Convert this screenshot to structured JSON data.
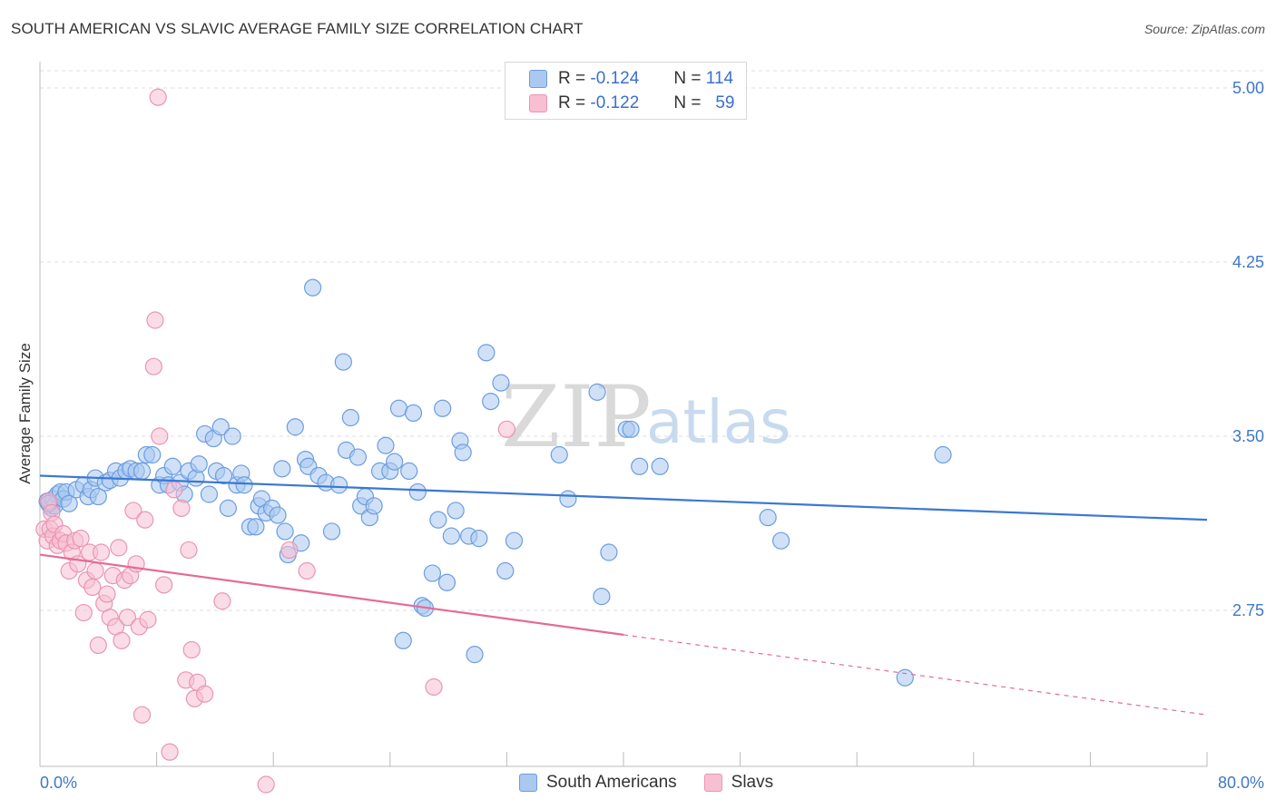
{
  "title": "SOUTH AMERICAN VS SLAVIC AVERAGE FAMILY SIZE CORRELATION CHART",
  "source": "Source: ZipAtlas.com",
  "watermark": {
    "zip": "ZIP",
    "atlas": "atlas"
  },
  "legend": {
    "r_label": "R =",
    "n_label": "N =",
    "rows": [
      {
        "name": "South Americans",
        "r": "-0.124",
        "n": "114",
        "fill": "#aac8f0",
        "stroke": "#6b9de0"
      },
      {
        "name": "Slavs",
        "r": "-0.122",
        "n": "59",
        "fill": "#f8bfd2",
        "stroke": "#e995b2"
      }
    ]
  },
  "bottom_legend": [
    "South Americans",
    "Slavs"
  ],
  "colors": {
    "blue_line": "#3a78d4",
    "pink_line": "#e56a96",
    "grid": "#dddddd",
    "axis": "#bbbbbb"
  },
  "chart_data": {
    "type": "scatter",
    "title": "SOUTH AMERICAN VS SLAVIC AVERAGE FAMILY SIZE CORRELATION CHART",
    "xlabel": "",
    "ylabel": "Average Family Size",
    "xlim": [
      0,
      80
    ],
    "ylim": [
      2.0,
      5.1
    ],
    "x_tick_labels": [
      "0.0%",
      "80.0%"
    ],
    "y_ticks": [
      5.0,
      4.25,
      3.5,
      2.75
    ],
    "y_tick_labels": [
      "5.00",
      "4.25",
      "3.50",
      "2.75"
    ],
    "grid": true,
    "series": [
      {
        "name": "South Americans",
        "trend": {
          "x": [
            0,
            80
          ],
          "y": [
            3.33,
            3.14
          ],
          "dashed_from": null
        },
        "points": [
          [
            0.5,
            3.22
          ],
          [
            0.7,
            3.2
          ],
          [
            0.8,
            3.19
          ],
          [
            0.9,
            3.23
          ],
          [
            1.0,
            3.2
          ],
          [
            1.2,
            3.25
          ],
          [
            1.4,
            3.26
          ],
          [
            1.6,
            3.23
          ],
          [
            1.8,
            3.26
          ],
          [
            2.0,
            3.21
          ],
          [
            2.5,
            3.27
          ],
          [
            3.0,
            3.29
          ],
          [
            3.3,
            3.24
          ],
          [
            3.5,
            3.27
          ],
          [
            3.8,
            3.32
          ],
          [
            4.0,
            3.24
          ],
          [
            4.5,
            3.3
          ],
          [
            4.8,
            3.31
          ],
          [
            5.2,
            3.35
          ],
          [
            5.5,
            3.32
          ],
          [
            5.9,
            3.35
          ],
          [
            6.2,
            3.36
          ],
          [
            6.6,
            3.35
          ],
          [
            7.0,
            3.35
          ],
          [
            7.3,
            3.42
          ],
          [
            7.7,
            3.42
          ],
          [
            8.2,
            3.29
          ],
          [
            8.5,
            3.33
          ],
          [
            8.8,
            3.29
          ],
          [
            9.1,
            3.37
          ],
          [
            9.6,
            3.3
          ],
          [
            9.9,
            3.25
          ],
          [
            10.2,
            3.35
          ],
          [
            10.7,
            3.32
          ],
          [
            10.9,
            3.38
          ],
          [
            11.3,
            3.51
          ],
          [
            11.6,
            3.25
          ],
          [
            11.9,
            3.49
          ],
          [
            12.1,
            3.35
          ],
          [
            12.4,
            3.54
          ],
          [
            12.6,
            3.33
          ],
          [
            12.9,
            3.19
          ],
          [
            13.2,
            3.5
          ],
          [
            13.5,
            3.29
          ],
          [
            13.8,
            3.34
          ],
          [
            14.0,
            3.29
          ],
          [
            14.4,
            3.11
          ],
          [
            14.8,
            3.11
          ],
          [
            15.0,
            3.2
          ],
          [
            15.2,
            3.23
          ],
          [
            15.5,
            3.17
          ],
          [
            15.9,
            3.19
          ],
          [
            16.3,
            3.16
          ],
          [
            16.6,
            3.36
          ],
          [
            16.8,
            3.09
          ],
          [
            17.0,
            2.99
          ],
          [
            17.5,
            3.54
          ],
          [
            17.9,
            3.04
          ],
          [
            18.2,
            3.4
          ],
          [
            18.4,
            3.37
          ],
          [
            18.7,
            4.14
          ],
          [
            19.1,
            3.33
          ],
          [
            19.6,
            3.3
          ],
          [
            20.0,
            3.09
          ],
          [
            20.5,
            3.29
          ],
          [
            20.8,
            3.82
          ],
          [
            21.0,
            3.44
          ],
          [
            21.3,
            3.58
          ],
          [
            21.8,
            3.41
          ],
          [
            22.0,
            3.2
          ],
          [
            22.3,
            3.24
          ],
          [
            22.6,
            3.15
          ],
          [
            22.9,
            3.2
          ],
          [
            23.3,
            3.35
          ],
          [
            23.7,
            3.46
          ],
          [
            24.0,
            3.35
          ],
          [
            24.3,
            3.39
          ],
          [
            24.6,
            3.62
          ],
          [
            24.9,
            2.62
          ],
          [
            25.3,
            3.35
          ],
          [
            25.6,
            3.6
          ],
          [
            25.9,
            3.26
          ],
          [
            26.2,
            2.77
          ],
          [
            26.4,
            2.76
          ],
          [
            26.9,
            2.91
          ],
          [
            27.3,
            3.14
          ],
          [
            27.6,
            3.62
          ],
          [
            27.9,
            2.87
          ],
          [
            28.2,
            3.07
          ],
          [
            28.5,
            3.18
          ],
          [
            28.8,
            3.48
          ],
          [
            29.0,
            3.43
          ],
          [
            29.4,
            3.07
          ],
          [
            29.8,
            2.56
          ],
          [
            30.1,
            3.06
          ],
          [
            30.6,
            3.86
          ],
          [
            30.9,
            3.65
          ],
          [
            31.6,
            3.73
          ],
          [
            31.9,
            2.92
          ],
          [
            32.5,
            3.05
          ],
          [
            35.6,
            3.42
          ],
          [
            36.2,
            3.23
          ],
          [
            38.5,
            2.81
          ],
          [
            39.0,
            3.0
          ],
          [
            38.2,
            3.69
          ],
          [
            40.2,
            3.53
          ],
          [
            40.5,
            3.53
          ],
          [
            41.1,
            3.37
          ],
          [
            42.5,
            3.37
          ],
          [
            49.9,
            3.15
          ],
          [
            50.8,
            3.05
          ],
          [
            59.3,
            2.46
          ],
          [
            61.9,
            3.42
          ],
          [
            0.6,
            3.21
          ]
        ]
      },
      {
        "name": "Slavs",
        "trend": {
          "x": [
            0,
            80
          ],
          "y": [
            2.99,
            2.3
          ],
          "dashed_from": 40
        },
        "points": [
          [
            0.3,
            3.1
          ],
          [
            0.5,
            3.05
          ],
          [
            0.6,
            3.22
          ],
          [
            0.7,
            3.1
          ],
          [
            0.8,
            3.17
          ],
          [
            0.9,
            3.07
          ],
          [
            1.0,
            3.12
          ],
          [
            1.2,
            3.03
          ],
          [
            1.4,
            3.05
          ],
          [
            1.6,
            3.08
          ],
          [
            1.8,
            3.04
          ],
          [
            2.0,
            2.92
          ],
          [
            2.2,
            3.0
          ],
          [
            2.4,
            3.05
          ],
          [
            2.6,
            2.95
          ],
          [
            2.8,
            3.06
          ],
          [
            3.0,
            2.74
          ],
          [
            3.2,
            2.88
          ],
          [
            3.4,
            3.0
          ],
          [
            3.6,
            2.85
          ],
          [
            3.8,
            2.92
          ],
          [
            4.0,
            2.6
          ],
          [
            4.2,
            3.0
          ],
          [
            4.4,
            2.78
          ],
          [
            4.6,
            2.82
          ],
          [
            4.8,
            2.72
          ],
          [
            5.0,
            2.9
          ],
          [
            5.2,
            2.68
          ],
          [
            5.4,
            3.02
          ],
          [
            5.6,
            2.62
          ],
          [
            5.8,
            2.88
          ],
          [
            6.0,
            2.72
          ],
          [
            6.2,
            2.9
          ],
          [
            6.4,
            3.18
          ],
          [
            6.6,
            2.95
          ],
          [
            6.8,
            2.68
          ],
          [
            7.0,
            2.3
          ],
          [
            7.2,
            3.14
          ],
          [
            7.4,
            2.71
          ],
          [
            7.8,
            3.8
          ],
          [
            7.9,
            4.0
          ],
          [
            8.2,
            3.5
          ],
          [
            8.5,
            2.86
          ],
          [
            8.9,
            2.14
          ],
          [
            9.2,
            3.27
          ],
          [
            9.7,
            3.19
          ],
          [
            10.0,
            2.45
          ],
          [
            10.2,
            3.01
          ],
          [
            10.4,
            2.58
          ],
          [
            10.6,
            2.37
          ],
          [
            10.8,
            2.44
          ],
          [
            11.3,
            2.39
          ],
          [
            12.5,
            2.79
          ],
          [
            15.5,
            2.0
          ],
          [
            17.1,
            3.01
          ],
          [
            18.3,
            2.92
          ],
          [
            27.0,
            2.42
          ],
          [
            32.0,
            3.53
          ],
          [
            8.1,
            4.96
          ]
        ]
      }
    ]
  }
}
